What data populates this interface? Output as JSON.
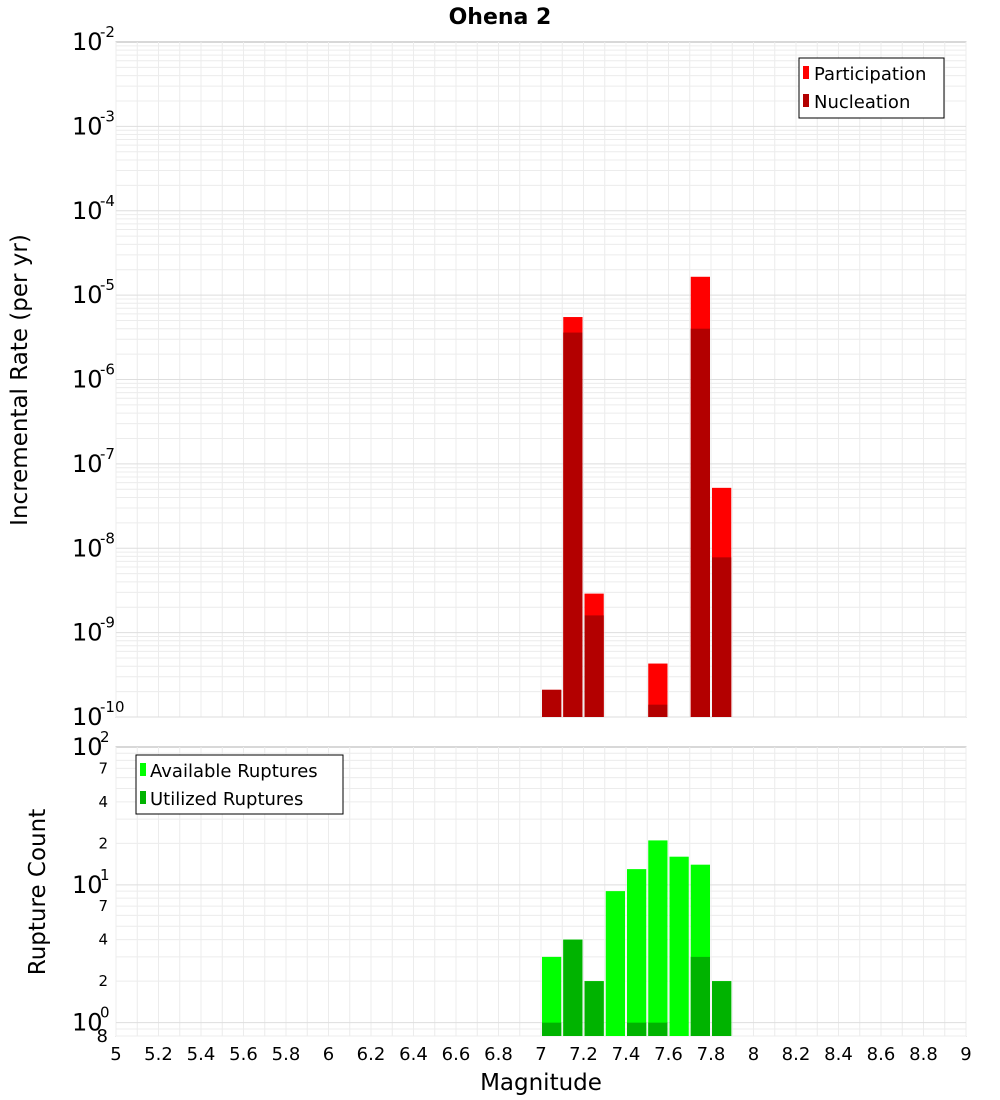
{
  "chart_data": [
    {
      "type": "bar",
      "title": "Ohena 2",
      "xlabel": "",
      "ylabel": "Incremental Rate (per yr)",
      "yscale": "log",
      "ylim": [
        1e-10,
        0.01
      ],
      "xlim": [
        5,
        9
      ],
      "bar_width": 0.1,
      "grid": true,
      "legend_position": "top-right",
      "y_ticks": [
        {
          "base": "10",
          "exp": "-10",
          "value": 1e-10
        },
        {
          "base": "10",
          "exp": "-9",
          "value": 1e-09
        },
        {
          "base": "10",
          "exp": "-8",
          "value": 1e-08
        },
        {
          "base": "10",
          "exp": "-7",
          "value": 1e-07
        },
        {
          "base": "10",
          "exp": "-6",
          "value": 1e-06
        },
        {
          "base": "10",
          "exp": "-5",
          "value": 1e-05
        },
        {
          "base": "10",
          "exp": "-4",
          "value": 0.0001
        },
        {
          "base": "10",
          "exp": "-3",
          "value": 0.001
        },
        {
          "base": "10",
          "exp": "-2",
          "value": 0.01
        }
      ],
      "series": [
        {
          "name": "Participation",
          "color": "#ff0000",
          "points": [
            {
              "x": 7.05,
              "y": 2.1e-10
            },
            {
              "x": 7.15,
              "y": 5.5e-06
            },
            {
              "x": 7.25,
              "y": 2.9e-09
            },
            {
              "x": 7.55,
              "y": 4.3e-10
            },
            {
              "x": 7.75,
              "y": 1.65e-05
            },
            {
              "x": 7.85,
              "y": 5.2e-08
            }
          ]
        },
        {
          "name": "Nucleation",
          "color": "#b30000",
          "points": [
            {
              "x": 7.05,
              "y": 2.1e-10
            },
            {
              "x": 7.15,
              "y": 3.6e-06
            },
            {
              "x": 7.25,
              "y": 1.6e-09
            },
            {
              "x": 7.55,
              "y": 1.4e-10
            },
            {
              "x": 7.75,
              "y": 4e-06
            },
            {
              "x": 7.85,
              "y": 7.8e-09
            }
          ]
        }
      ]
    },
    {
      "type": "bar",
      "title": "",
      "xlabel": "Magnitude",
      "ylabel": "Rupture Count",
      "yscale": "log",
      "ylim": [
        0.8,
        100
      ],
      "xlim": [
        5,
        9
      ],
      "bar_width": 0.1,
      "grid": true,
      "legend_position": "top-left",
      "y_ticks": [
        {
          "base": "10",
          "exp": "0",
          "value": 1
        },
        {
          "base": "10",
          "exp": "1",
          "value": 10
        },
        {
          "base": "10",
          "exp": "2",
          "value": 100
        }
      ],
      "y_minor_ticks": [
        {
          "label": "8",
          "value": 0.8
        },
        {
          "label": "2",
          "value": 2
        },
        {
          "label": "4",
          "value": 4
        },
        {
          "label": "7",
          "value": 7
        },
        {
          "label": "2",
          "value": 20
        },
        {
          "label": "4",
          "value": 40
        },
        {
          "label": "7",
          "value": 70
        }
      ],
      "x_ticks": [
        "5",
        "5.2",
        "5.4",
        "5.6",
        "5.8",
        "6",
        "6.2",
        "6.4",
        "6.6",
        "6.8",
        "7",
        "7.2",
        "7.4",
        "7.6",
        "7.8",
        "8",
        "8.2",
        "8.4",
        "8.6",
        "8.8",
        "9"
      ],
      "series": [
        {
          "name": "Available Ruptures",
          "color": "#00ff00",
          "points": [
            {
              "x": 7.05,
              "y": 3
            },
            {
              "x": 7.15,
              "y": 4
            },
            {
              "x": 7.25,
              "y": 2
            },
            {
              "x": 7.35,
              "y": 9
            },
            {
              "x": 7.45,
              "y": 13
            },
            {
              "x": 7.55,
              "y": 21
            },
            {
              "x": 7.65,
              "y": 16
            },
            {
              "x": 7.75,
              "y": 14
            },
            {
              "x": 7.85,
              "y": 2
            }
          ]
        },
        {
          "name": "Utilized Ruptures",
          "color": "#00b300",
          "points": [
            {
              "x": 7.05,
              "y": 1
            },
            {
              "x": 7.15,
              "y": 4
            },
            {
              "x": 7.25,
              "y": 2
            },
            {
              "x": 7.45,
              "y": 1
            },
            {
              "x": 7.55,
              "y": 1
            },
            {
              "x": 7.75,
              "y": 3
            },
            {
              "x": 7.85,
              "y": 2
            }
          ]
        }
      ]
    }
  ]
}
